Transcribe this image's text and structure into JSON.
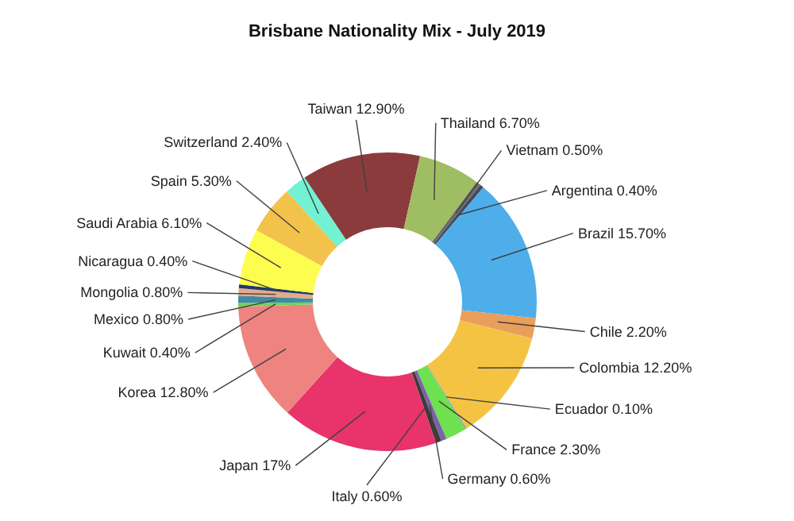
{
  "chart_data": {
    "type": "donut",
    "title": "Brisbane Nationality Mix - July 2019",
    "categories": [
      "Argentina",
      "Brazil",
      "Chile",
      "Colombia",
      "Ecuador",
      "France",
      "Germany",
      "Italy",
      "Japan",
      "Korea",
      "Kuwait",
      "Mexico",
      "Mongolia",
      "Nicaragua",
      "Saudi Arabia",
      "Spain",
      "Switzerland",
      "Taiwan",
      "Thailand",
      "Vietnam"
    ],
    "values": [
      0.4,
      15.7,
      2.2,
      12.2,
      0.1,
      2.3,
      0.6,
      0.6,
      17,
      12.8,
      0.4,
      0.8,
      0.8,
      0.4,
      6.1,
      5.3,
      2.4,
      12.9,
      6.7,
      0.5
    ],
    "value_labels": [
      "0.40%",
      "15.70%",
      "2.20%",
      "12.20%",
      "0.10%",
      "2.30%",
      "0.60%",
      "0.60%",
      "17%",
      "12.80%",
      "0.40%",
      "0.80%",
      "0.80%",
      "0.40%",
      "6.10%",
      "5.30%",
      "2.40%",
      "12.90%",
      "6.70%",
      "0.50%"
    ],
    "colors": [
      "#404a5a",
      "#4daeea",
      "#e99e5c",
      "#f5c343",
      "#5b9bd5",
      "#6fe04f",
      "#7b62a8",
      "#3f3a36",
      "#e9336b",
      "#ee8380",
      "#6fd35c",
      "#3f8ca0",
      "#e6a98a",
      "#1f3a6b",
      "#fdfd50",
      "#f3c24a",
      "#72f2d2",
      "#8b3b3b",
      "#9fbd63",
      "#6b6b6b"
    ]
  }
}
